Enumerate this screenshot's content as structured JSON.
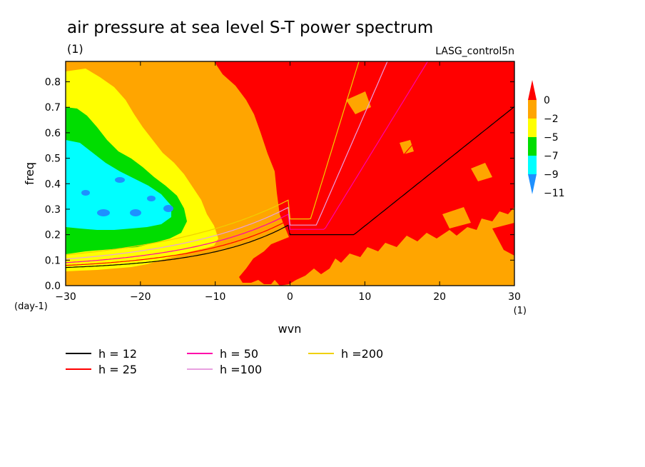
{
  "chart_data": {
    "type": "heatmap",
    "title": "air pressure at sea level S-T power spectrum",
    "units_label": "(1)",
    "source_label": "LASG_control5n",
    "xlabel": "wvn",
    "ylabel": "freq",
    "x_unit_label": "(1)",
    "y_unit_label": "(day-1)",
    "xlim": [
      -30,
      30
    ],
    "ylim": [
      0.0,
      0.88
    ],
    "xticks": [
      -30,
      -20,
      -10,
      0,
      10,
      20,
      30
    ],
    "xtick_labels": [
      "−30",
      "−20",
      "−10",
      "0",
      "10",
      "20",
      "30"
    ],
    "yticks": [
      0.0,
      0.1,
      0.2,
      0.3,
      0.4,
      0.5,
      0.6,
      0.7,
      0.8
    ],
    "ytick_labels": [
      "0.0",
      "0.1",
      "0.2",
      "0.3",
      "0.4",
      "0.5",
      "0.6",
      "0.7",
      "0.8"
    ],
    "colorbar": {
      "levels": [
        0,
        -2,
        -5,
        -7,
        -9,
        -11
      ],
      "level_labels": [
        "0",
        "−2",
        "−5",
        "−7",
        "−9",
        "−11"
      ],
      "colors": [
        "#ff0000",
        "#ffa500",
        "#ffff00",
        "#00dd00",
        "#00ffff",
        "#1e90ff"
      ]
    },
    "series": [
      {
        "name": "h = 12",
        "color": "#000000",
        "equivalent_depth": 12
      },
      {
        "name": "h = 25",
        "color": "#ff0000",
        "equivalent_depth": 25
      },
      {
        "name": "h = 50",
        "color": "#ff00aa",
        "equivalent_depth": 50
      },
      {
        "name": "h =100",
        "color": "#e8a0e0",
        "equivalent_depth": 100
      },
      {
        "name": "h =200",
        "color": "#f0d000",
        "equivalent_depth": 200
      }
    ]
  }
}
